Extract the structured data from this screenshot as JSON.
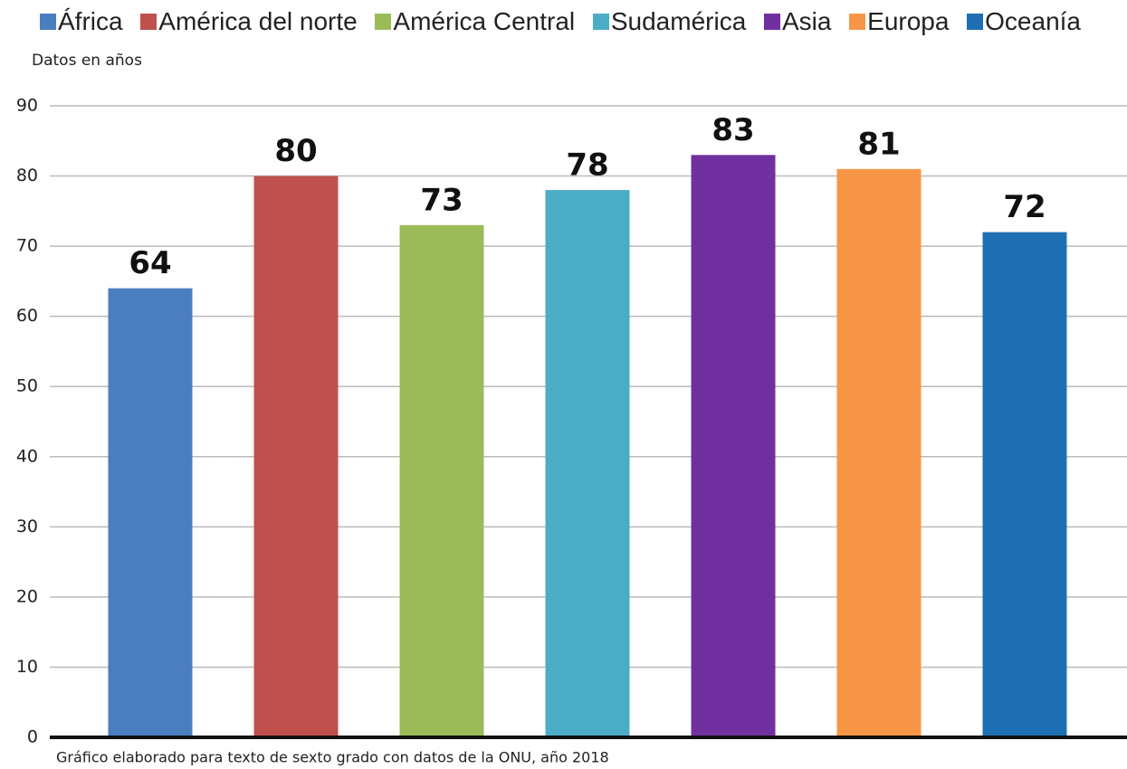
{
  "chart_data": {
    "type": "bar",
    "y_label": "Datos en años",
    "note": "Gráfico elaborado para texto de sexto grado con datos de la ONU, año 2018",
    "categories": [
      "África",
      "América del norte",
      "América Central",
      "Sudamérica",
      "Asia",
      "Europa",
      "Oceanía"
    ],
    "values": [
      64,
      80,
      73,
      78,
      83,
      81,
      72
    ],
    "colors": [
      "#4a7ebf",
      "#c0504d",
      "#9bbb59",
      "#4bacc6",
      "#7030a0",
      "#f79646",
      "#1f6fb5"
    ],
    "ylim": [
      0,
      90
    ],
    "yticks": [
      0,
      10,
      20,
      30,
      40,
      50,
      60,
      70,
      80,
      90
    ],
    "grid": true
  }
}
